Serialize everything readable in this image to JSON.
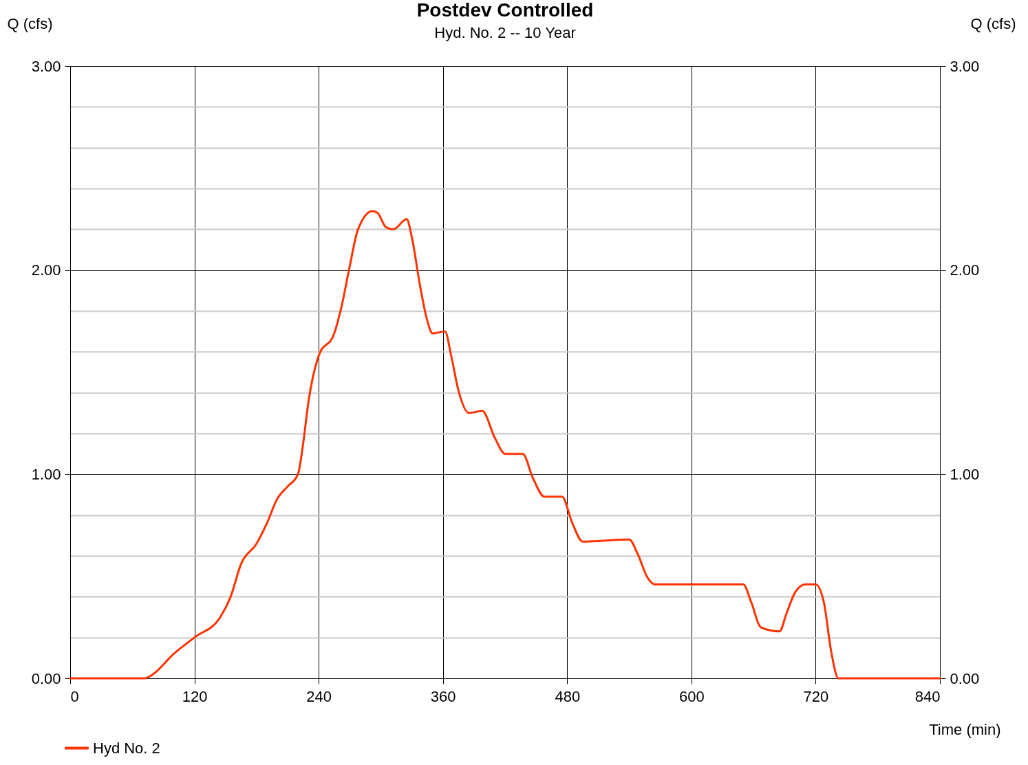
{
  "chart_data": {
    "type": "line",
    "title": "Postdev Controlled",
    "subtitle": "Hyd. No. 2 -- 10 Year",
    "xlabel": "Time (min)",
    "ylabel": "Q (cfs)",
    "y2label": "Q (cfs)",
    "x": [
      0,
      72,
      80,
      100,
      120,
      145,
      155,
      165,
      180,
      190,
      200,
      210,
      220,
      225,
      230,
      240,
      255,
      262,
      270,
      278,
      292,
      297,
      305,
      312,
      325,
      330,
      338,
      345,
      350,
      362,
      368,
      375,
      385,
      398,
      410,
      420,
      437,
      447,
      458,
      475,
      485,
      495,
      540,
      548,
      558,
      565,
      650,
      658,
      667,
      685,
      692,
      700,
      710,
      720,
      728,
      735,
      742,
      840
    ],
    "series": [
      {
        "name": "Hyd No. 2",
        "color": "#ff3300",
        "values": [
          0,
          0,
          0.02,
          0.12,
          0.2,
          0.3,
          0.4,
          0.56,
          0.66,
          0.76,
          0.88,
          0.94,
          1.0,
          1.15,
          1.35,
          1.58,
          1.69,
          1.82,
          2.02,
          2.2,
          2.29,
          2.28,
          2.21,
          2.2,
          2.25,
          2.16,
          1.92,
          1.75,
          1.69,
          1.7,
          1.58,
          1.41,
          1.3,
          1.31,
          1.18,
          1.1,
          1.1,
          0.98,
          0.89,
          0.89,
          0.76,
          0.67,
          0.68,
          0.61,
          0.49,
          0.46,
          0.46,
          0.37,
          0.25,
          0.23,
          0.32,
          0.42,
          0.46,
          0.46,
          0.37,
          0.13,
          0,
          0
        ]
      }
    ],
    "xlim": [
      0,
      840
    ],
    "xticks": [
      0,
      120,
      240,
      360,
      480,
      600,
      720,
      840
    ],
    "ylim": [
      0,
      3
    ],
    "yticks": [
      {
        "value": 0,
        "label": "0.00"
      },
      {
        "value": 0.2,
        "label": null
      },
      {
        "value": 0.4,
        "label": null
      },
      {
        "value": 0.6,
        "label": null
      },
      {
        "value": 0.8,
        "label": null
      },
      {
        "value": 1,
        "label": "1.00"
      },
      {
        "value": 1.2,
        "label": null
      },
      {
        "value": 1.4,
        "label": null
      },
      {
        "value": 1.6,
        "label": null
      },
      {
        "value": 1.8,
        "label": null
      },
      {
        "value": 2,
        "label": "2.00"
      },
      {
        "value": 2.2,
        "label": null
      },
      {
        "value": 2.4,
        "label": null
      },
      {
        "value": 2.6,
        "label": null
      },
      {
        "value": 2.8,
        "label": null
      },
      {
        "value": 3,
        "label": "3.00"
      }
    ],
    "y2lim": [
      0,
      3
    ],
    "y2ticks": [
      {
        "value": 0,
        "label": "0.00"
      },
      {
        "value": 1,
        "label": "1.00"
      },
      {
        "value": 2,
        "label": "2.00"
      },
      {
        "value": 3,
        "label": "3.00"
      }
    ],
    "grid": true,
    "legend": "bottom left",
    "marker": "none",
    "line_style": "solid"
  }
}
